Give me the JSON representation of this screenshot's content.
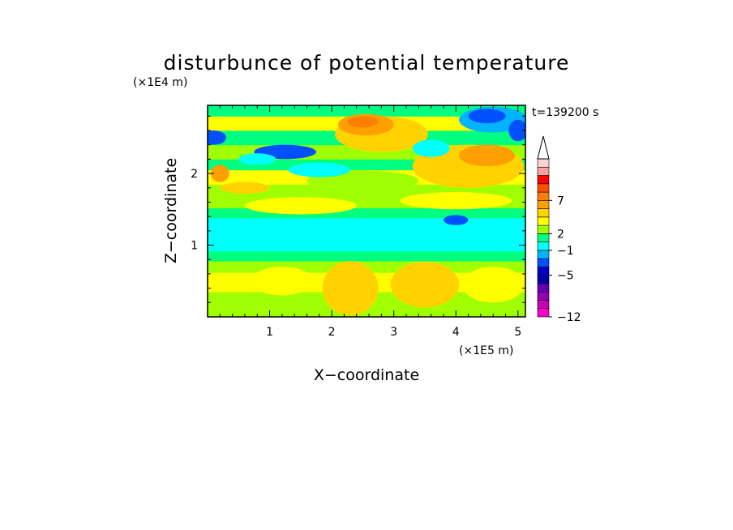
{
  "chart_data": {
    "type": "heatmap",
    "title": "disturbunce of potential temperature",
    "xlabel": "X−coordinate",
    "ylabel": "Z−coordinate",
    "x_unit": "(×1E5 m)",
    "y_unit": "(×1E4 m)",
    "time_label": "t=139200 s",
    "xlim": [
      0,
      5.12
    ],
    "ylim": [
      0,
      2.95
    ],
    "x_ticks": [
      {
        "value": 1,
        "label": "1"
      },
      {
        "value": 2,
        "label": "2"
      },
      {
        "value": 3,
        "label": "3"
      },
      {
        "value": 4,
        "label": "4"
      },
      {
        "value": 5,
        "label": "5"
      }
    ],
    "y_ticks": [
      {
        "value": 1,
        "label": "1"
      },
      {
        "value": 2,
        "label": "2"
      }
    ],
    "colorbar": {
      "extend": "max",
      "colors": [
        "#ff00c8",
        "#c800b4",
        "#9600b4",
        "#6400b4",
        "#0000a0",
        "#0000c8",
        "#0050ff",
        "#00b4ff",
        "#00ffff",
        "#00ff80",
        "#a0ff00",
        "#ffff00",
        "#ffd200",
        "#ffa000",
        "#ff8000",
        "#ff5000",
        "#ff0000",
        "#ffa0a0",
        "#ffd2d2"
      ],
      "labels": [
        {
          "level": 0,
          "text": "−12"
        },
        {
          "level": 5,
          "text": "−5"
        },
        {
          "level": 8,
          "text": "−1"
        },
        {
          "level": 10,
          "text": "2"
        },
        {
          "level": 14,
          "text": "7"
        }
      ]
    },
    "field_bands": [
      {
        "z": 0.0,
        "level": 10
      },
      {
        "z": 0.35,
        "level": 11
      },
      {
        "z": 0.62,
        "level": 10
      },
      {
        "z": 0.78,
        "level": 9
      },
      {
        "z": 0.92,
        "level": 8
      },
      {
        "z": 1.38,
        "level": 9
      },
      {
        "z": 1.52,
        "level": 10
      },
      {
        "z": 1.85,
        "level": 11
      },
      {
        "z": 2.05,
        "level": 9
      },
      {
        "z": 2.2,
        "level": 10
      },
      {
        "z": 2.4,
        "level": 9
      },
      {
        "z": 2.6,
        "level": 11
      },
      {
        "z": 2.8,
        "level": 9
      }
    ],
    "field_features": [
      {
        "x": 2.3,
        "z": 0.4,
        "rx": 0.45,
        "rz": 0.38,
        "level": 12
      },
      {
        "x": 3.5,
        "z": 0.45,
        "rx": 0.55,
        "rz": 0.32,
        "level": 12
      },
      {
        "x": 4.6,
        "z": 0.45,
        "rx": 0.5,
        "rz": 0.25,
        "level": 11
      },
      {
        "x": 1.2,
        "z": 0.5,
        "rx": 0.5,
        "rz": 0.2,
        "level": 11
      },
      {
        "x": 1.5,
        "z": 1.55,
        "rx": 0.9,
        "rz": 0.12,
        "level": 11
      },
      {
        "x": 4.0,
        "z": 1.62,
        "rx": 0.9,
        "rz": 0.12,
        "level": 11
      },
      {
        "x": 2.5,
        "z": 1.9,
        "rx": 0.9,
        "rz": 0.14,
        "level": 10
      },
      {
        "x": 4.2,
        "z": 2.1,
        "rx": 0.9,
        "rz": 0.3,
        "level": 12
      },
      {
        "x": 4.5,
        "z": 2.25,
        "rx": 0.45,
        "rz": 0.15,
        "level": 13
      },
      {
        "x": 2.8,
        "z": 2.55,
        "rx": 0.75,
        "rz": 0.25,
        "level": 12
      },
      {
        "x": 2.55,
        "z": 2.68,
        "rx": 0.45,
        "rz": 0.15,
        "level": 13
      },
      {
        "x": 2.5,
        "z": 2.72,
        "rx": 0.25,
        "rz": 0.08,
        "level": 14
      },
      {
        "x": 4.0,
        "z": 1.35,
        "rx": 0.2,
        "rz": 0.07,
        "level": 6
      },
      {
        "x": 4.6,
        "z": 2.75,
        "rx": 0.55,
        "rz": 0.18,
        "level": 7
      },
      {
        "x": 4.5,
        "z": 2.8,
        "rx": 0.3,
        "rz": 0.1,
        "level": 6
      },
      {
        "x": 5.0,
        "z": 2.6,
        "rx": 0.15,
        "rz": 0.15,
        "level": 6
      },
      {
        "x": 1.25,
        "z": 2.3,
        "rx": 0.5,
        "rz": 0.1,
        "level": 6
      },
      {
        "x": 0.1,
        "z": 2.5,
        "rx": 0.2,
        "rz": 0.1,
        "level": 6
      },
      {
        "x": 0.8,
        "z": 2.2,
        "rx": 0.3,
        "rz": 0.08,
        "level": 8
      },
      {
        "x": 1.8,
        "z": 2.05,
        "rx": 0.5,
        "rz": 0.1,
        "level": 8
      },
      {
        "x": 3.6,
        "z": 2.35,
        "rx": 0.3,
        "rz": 0.12,
        "level": 8
      },
      {
        "x": 0.2,
        "z": 2.0,
        "rx": 0.15,
        "rz": 0.12,
        "level": 13
      },
      {
        "x": 0.6,
        "z": 1.8,
        "rx": 0.4,
        "rz": 0.08,
        "level": 12
      }
    ]
  }
}
